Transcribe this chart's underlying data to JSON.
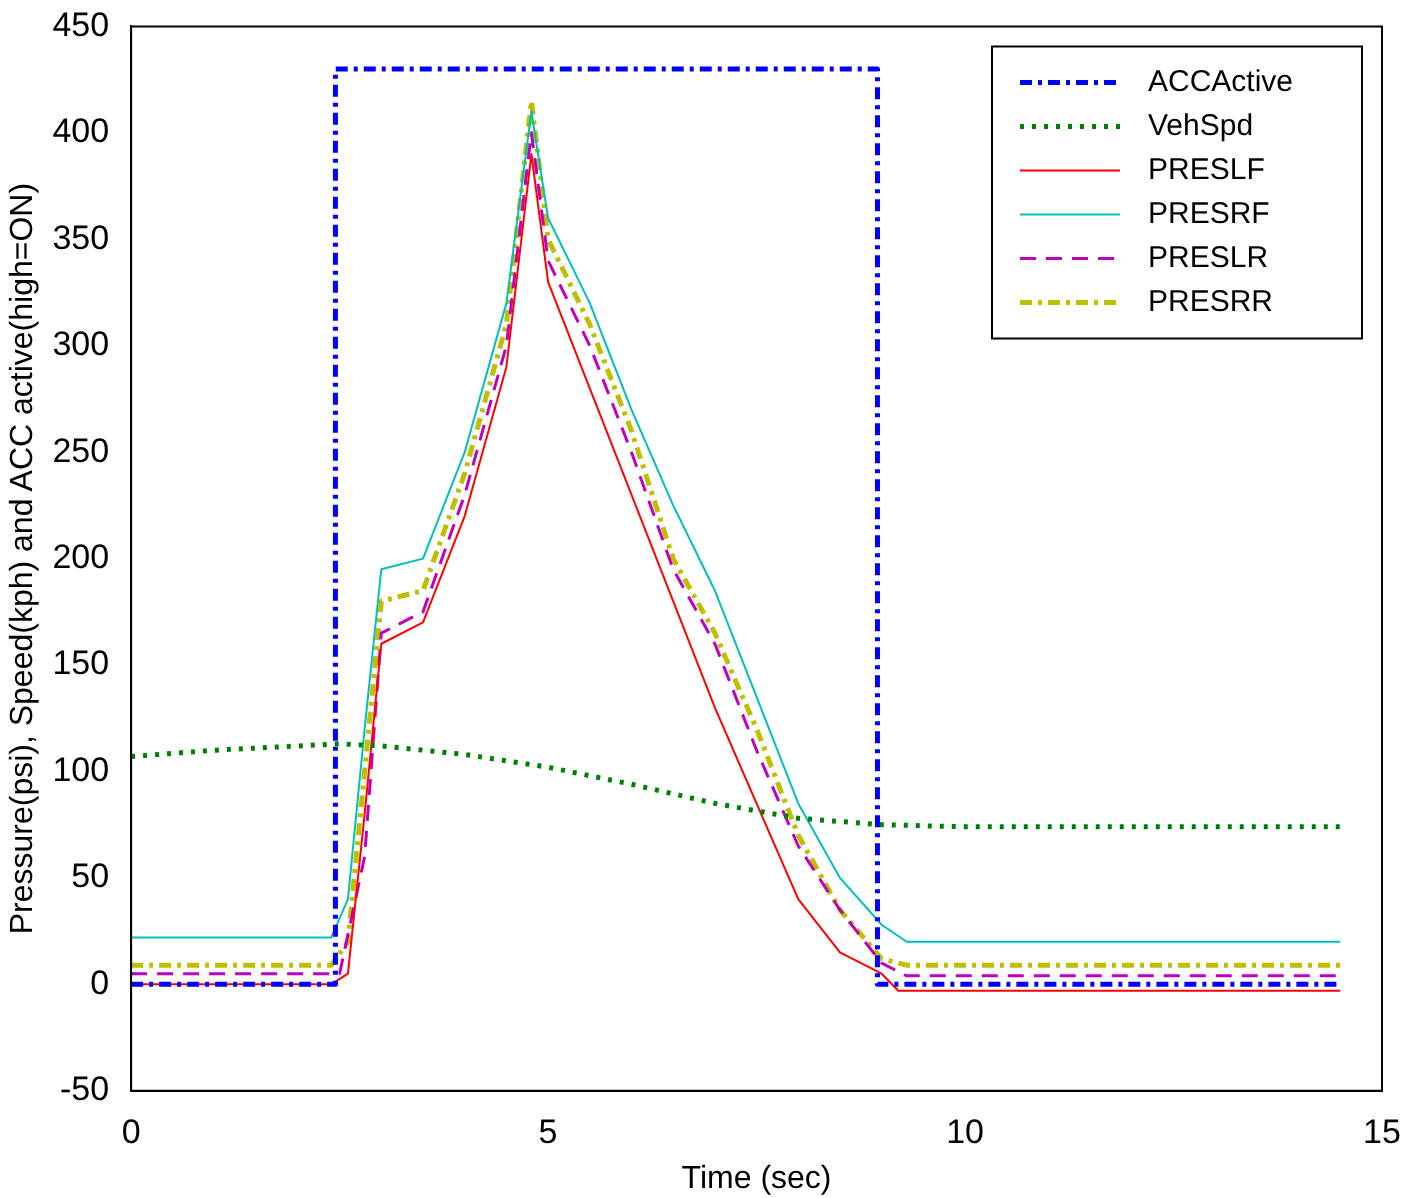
{
  "chart_data": {
    "type": "line",
    "xlabel": "Time (sec)",
    "ylabel": "Pressure(psi), Speed(kph) and ACC active(high=ON)",
    "xlim": [
      0,
      15
    ],
    "xticks": [
      0,
      5,
      10,
      15
    ],
    "ylim": [
      -50,
      450
    ],
    "yticks": [
      -50,
      0,
      50,
      100,
      150,
      200,
      250,
      300,
      350,
      400,
      450
    ],
    "grid": false,
    "legend": "top right",
    "marker": "none",
    "series": [
      {
        "name": "ACCActive",
        "color": "#0000ff",
        "line_style": "dashdot",
        "x": [
          0,
          2.45,
          2.45,
          8.95,
          8.95,
          14.5
        ],
        "values": [
          0,
          0,
          430,
          430,
          0,
          0
        ]
      },
      {
        "name": "VehSpd",
        "color": "#008000",
        "line_style": "dotted",
        "x": [
          0,
          1,
          2,
          2.5,
          3,
          4,
          5,
          6,
          7,
          8,
          9,
          10,
          12,
          14.5
        ],
        "values": [
          107,
          110,
          112,
          113,
          112,
          108,
          102,
          94,
          85,
          78,
          75,
          74,
          74,
          74
        ]
      },
      {
        "name": "PRESLF",
        "color": "#ff0000",
        "line_style": "solid",
        "x": [
          0,
          2.4,
          2.6,
          2.8,
          3,
          3.5,
          4,
          4.5,
          4.8,
          5,
          5.5,
          6,
          6.5,
          7,
          7.5,
          8,
          8.5,
          9,
          9.2,
          14.5
        ],
        "values": [
          0,
          0,
          5,
          80,
          160,
          170,
          220,
          290,
          390,
          330,
          280,
          230,
          180,
          130,
          85,
          40,
          15,
          5,
          -3,
          -3
        ]
      },
      {
        "name": "PRESRF",
        "color": "#00bfbf",
        "line_style": "solid",
        "x": [
          0,
          2.4,
          2.6,
          2.8,
          3,
          3.5,
          4,
          4.5,
          4.8,
          5,
          5.5,
          6,
          6.5,
          7,
          7.5,
          8,
          8.5,
          9,
          9.3,
          14.5
        ],
        "values": [
          22,
          22,
          40,
          120,
          195,
          200,
          250,
          320,
          410,
          360,
          320,
          270,
          225,
          185,
          135,
          85,
          50,
          28,
          20,
          20
        ]
      },
      {
        "name": "PRESLR",
        "color": "#bf00bf",
        "line_style": "dashed",
        "x": [
          0,
          2.5,
          2.8,
          3,
          3.5,
          4,
          4.5,
          4.8,
          5,
          5.5,
          6,
          6.5,
          7,
          7.5,
          8,
          8.5,
          9,
          9.3,
          14.5
        ],
        "values": [
          5,
          5,
          60,
          165,
          175,
          230,
          300,
          400,
          340,
          300,
          250,
          195,
          160,
          110,
          65,
          35,
          10,
          4,
          4
        ]
      },
      {
        "name": "PRESRR",
        "color": "#bfbf00",
        "line_style": "dashdot",
        "x": [
          0,
          2.4,
          2.6,
          2.8,
          3,
          3.5,
          4,
          4.5,
          4.8,
          5,
          5.5,
          6,
          6.5,
          7,
          7.5,
          8,
          8.5,
          9,
          9.3,
          14.5
        ],
        "values": [
          9,
          9,
          20,
          100,
          180,
          185,
          240,
          310,
          415,
          350,
          310,
          260,
          200,
          165,
          120,
          70,
          35,
          12,
          9,
          9
        ]
      }
    ]
  }
}
